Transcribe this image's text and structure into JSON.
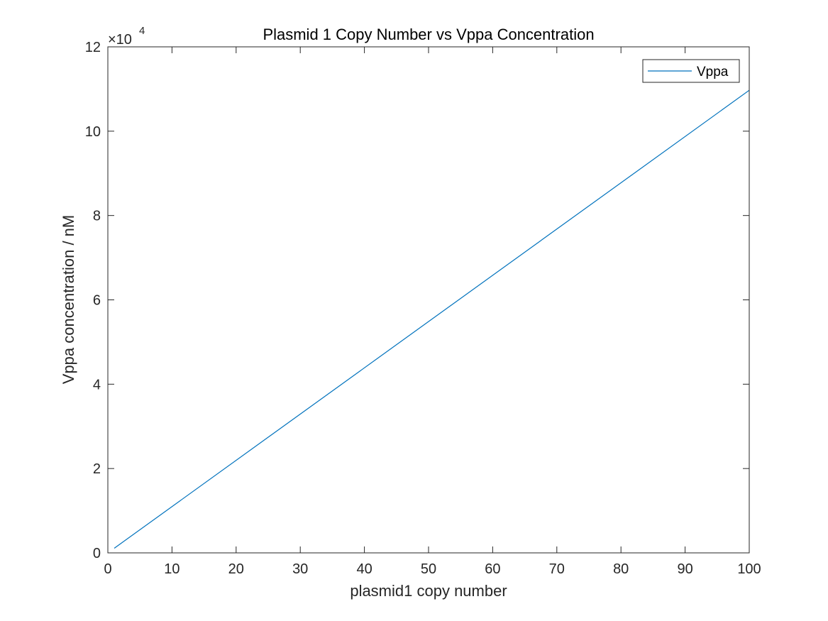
{
  "chart_data": {
    "type": "line",
    "title": "Plasmid 1 Copy Number vs Vppa Concentration",
    "xlabel": "plasmid1 copy number",
    "ylabel": "Vppa concentration / nM",
    "xlim": [
      0,
      100
    ],
    "ylim": [
      0,
      120000
    ],
    "x_ticks": [
      "0",
      "10",
      "20",
      "30",
      "40",
      "50",
      "60",
      "70",
      "80",
      "90",
      "100"
    ],
    "x_tick_values": [
      0,
      10,
      20,
      30,
      40,
      50,
      60,
      70,
      80,
      90,
      100
    ],
    "y_ticks": [
      "0",
      "2",
      "4",
      "6",
      "8",
      "10",
      "12"
    ],
    "y_tick_values": [
      0,
      20000,
      40000,
      60000,
      80000,
      100000,
      120000
    ],
    "y_exponent_label": {
      "base": "×10",
      "exponent": "4"
    },
    "legend_position": "top-right",
    "grid": false,
    "series": [
      {
        "name": "Vppa",
        "color": "#0072BD",
        "x": [
          1,
          100
        ],
        "y": [
          1100,
          109700
        ]
      }
    ]
  }
}
